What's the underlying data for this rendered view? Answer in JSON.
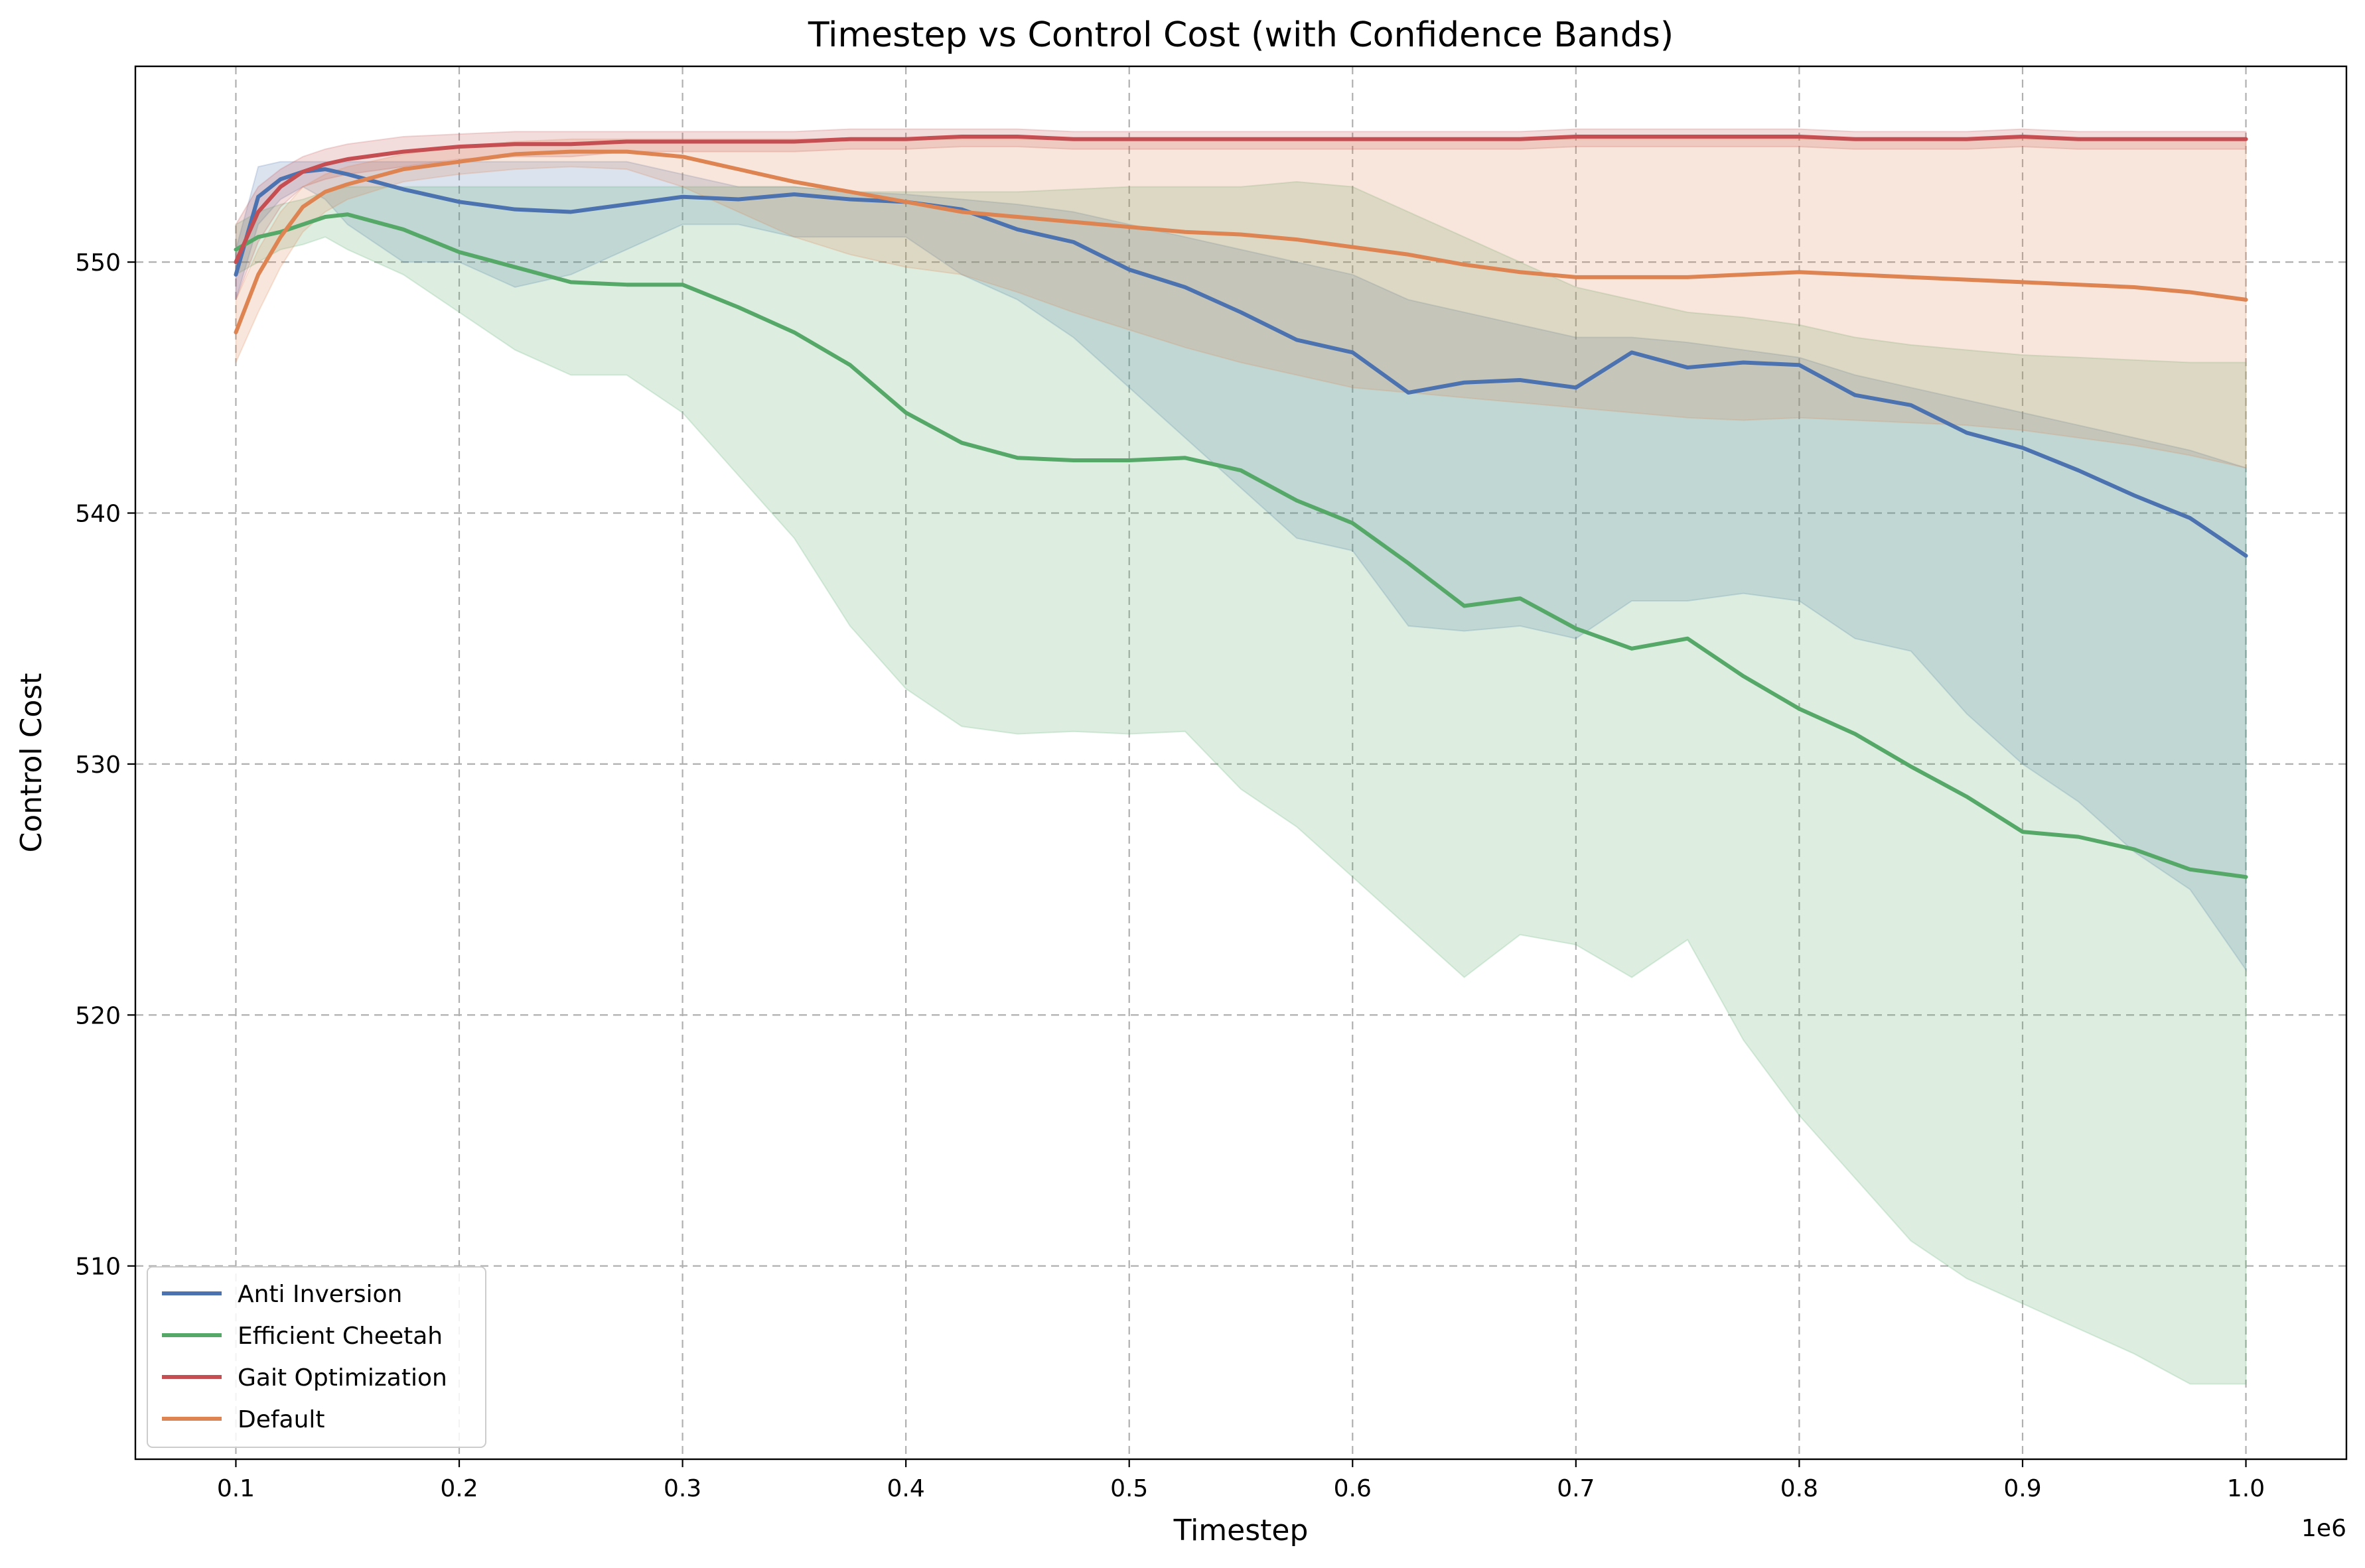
{
  "chart_data": {
    "type": "line",
    "title": "Timestep vs Control Cost (with Confidence Bands)",
    "xlabel": "Timestep",
    "ylabel": "Control Cost",
    "x_offset_label": "1e6",
    "xlim": [
      55000,
      1045000
    ],
    "ylim": [
      502.3,
      557.8
    ],
    "xticks": [
      100000,
      200000,
      300000,
      400000,
      500000,
      600000,
      700000,
      800000,
      900000,
      1000000
    ],
    "xtick_labels": [
      "0.1",
      "0.2",
      "0.3",
      "0.4",
      "0.5",
      "0.6",
      "0.7",
      "0.8",
      "0.9",
      "1.0"
    ],
    "yticks": [
      510,
      520,
      530,
      540,
      550
    ],
    "ytick_labels": [
      "510",
      "520",
      "530",
      "540",
      "550"
    ],
    "grid": true,
    "legend_position": "lower-left",
    "x": [
      100000,
      110000,
      120000,
      130000,
      140000,
      150000,
      175000,
      200000,
      225000,
      250000,
      275000,
      300000,
      325000,
      350000,
      375000,
      400000,
      425000,
      450000,
      475000,
      500000,
      525000,
      550000,
      575000,
      600000,
      625000,
      650000,
      675000,
      700000,
      725000,
      750000,
      775000,
      800000,
      825000,
      850000,
      875000,
      900000,
      925000,
      950000,
      975000,
      1000000
    ],
    "series": [
      {
        "name": "Anti Inversion",
        "color": "#4c72b0",
        "values": [
          549.5,
          552.6,
          553.3,
          553.6,
          553.7,
          553.5,
          552.9,
          552.4,
          552.1,
          552.0,
          552.3,
          552.6,
          552.5,
          552.7,
          552.5,
          552.4,
          552.1,
          551.3,
          550.8,
          549.7,
          549.0,
          548.0,
          546.9,
          546.4,
          544.8,
          545.2,
          545.3,
          545.0,
          546.4,
          545.8,
          546.0,
          545.9,
          544.7,
          544.3,
          543.2,
          542.6,
          541.7,
          540.7,
          539.8,
          538.3
        ],
        "upper": [
          550.5,
          553.8,
          554.0,
          554.0,
          554.0,
          554.0,
          554.0,
          554.0,
          554.0,
          554.0,
          554.0,
          553.5,
          553.0,
          553.0,
          552.8,
          552.7,
          552.5,
          552.3,
          552.0,
          551.5,
          551.0,
          550.5,
          550.0,
          549.5,
          548.5,
          548.0,
          547.5,
          547.0,
          547.0,
          546.8,
          546.5,
          546.2,
          545.5,
          545.0,
          544.5,
          544.0,
          543.5,
          543.0,
          542.5,
          541.8
        ],
        "lower": [
          548.5,
          551.5,
          552.5,
          553.0,
          552.5,
          551.5,
          550.0,
          550.0,
          549.0,
          549.5,
          550.5,
          551.5,
          551.5,
          551.0,
          551.0,
          551.0,
          549.5,
          548.5,
          547.0,
          545.0,
          543.0,
          541.0,
          539.0,
          538.5,
          535.5,
          535.3,
          535.5,
          535.0,
          536.5,
          536.5,
          536.8,
          536.5,
          535.0,
          534.5,
          532.0,
          530.0,
          528.5,
          526.5,
          525.0,
          521.8
        ]
      },
      {
        "name": "Efficient Cheetah",
        "color": "#55a868",
        "values": [
          550.5,
          551.0,
          551.2,
          551.5,
          551.8,
          551.9,
          551.3,
          550.4,
          549.8,
          549.2,
          549.1,
          549.1,
          548.2,
          547.2,
          545.9,
          544.0,
          542.8,
          542.2,
          542.1,
          542.1,
          542.2,
          541.7,
          540.5,
          539.6,
          538.0,
          536.3,
          536.6,
          535.4,
          534.6,
          535.0,
          533.5,
          532.2,
          531.2,
          529.9,
          528.7,
          527.3,
          527.1,
          526.6,
          525.8,
          525.5
        ],
        "upper": [
          551.5,
          552.0,
          552.3,
          552.5,
          552.8,
          553.0,
          553.0,
          553.0,
          553.0,
          553.0,
          553.0,
          553.0,
          553.0,
          553.0,
          552.8,
          552.8,
          552.8,
          552.8,
          552.9,
          553.0,
          553.0,
          553.0,
          553.2,
          553.0,
          552.0,
          551.0,
          550.0,
          549.0,
          548.5,
          548.0,
          547.8,
          547.5,
          547.0,
          546.7,
          546.5,
          546.3,
          546.2,
          546.1,
          546.0,
          546.0
        ],
        "lower": [
          549.5,
          550.0,
          550.5,
          550.7,
          551.0,
          550.5,
          549.5,
          548.0,
          546.5,
          545.5,
          545.5,
          544.0,
          541.5,
          539.0,
          535.5,
          533.0,
          531.5,
          531.2,
          531.3,
          531.2,
          531.3,
          529.0,
          527.5,
          525.5,
          523.5,
          521.5,
          523.2,
          522.8,
          521.5,
          523.0,
          519.0,
          516.0,
          513.5,
          511.0,
          509.5,
          508.5,
          507.5,
          506.5,
          505.3,
          505.3
        ]
      },
      {
        "name": "Gait Optimization",
        "color": "#c44e52",
        "values": [
          550.0,
          552.0,
          553.0,
          553.6,
          553.9,
          554.1,
          554.4,
          554.6,
          554.7,
          554.7,
          554.8,
          554.8,
          554.8,
          554.8,
          554.9,
          554.9,
          555.0,
          555.0,
          554.9,
          554.9,
          554.9,
          554.9,
          554.9,
          554.9,
          554.9,
          554.9,
          554.9,
          555.0,
          555.0,
          555.0,
          555.0,
          555.0,
          554.9,
          554.9,
          554.9,
          555.0,
          554.9,
          554.9,
          554.9,
          554.9
        ],
        "upper": [
          551.5,
          553.0,
          553.7,
          554.2,
          554.5,
          554.7,
          555.0,
          555.1,
          555.2,
          555.2,
          555.2,
          555.2,
          555.2,
          555.2,
          555.3,
          555.3,
          555.3,
          555.3,
          555.2,
          555.2,
          555.2,
          555.2,
          555.2,
          555.2,
          555.2,
          555.2,
          555.2,
          555.3,
          555.3,
          555.3,
          555.3,
          555.3,
          555.2,
          555.2,
          555.2,
          555.3,
          555.2,
          555.2,
          555.2,
          555.2
        ],
        "lower": [
          548.5,
          550.8,
          552.2,
          553.0,
          553.3,
          553.5,
          553.8,
          554.1,
          554.2,
          554.2,
          554.4,
          554.4,
          554.4,
          554.4,
          554.5,
          554.5,
          554.6,
          554.6,
          554.5,
          554.5,
          554.5,
          554.5,
          554.5,
          554.5,
          554.5,
          554.5,
          554.5,
          554.6,
          554.6,
          554.6,
          554.6,
          554.6,
          554.5,
          554.5,
          554.5,
          554.6,
          554.5,
          554.5,
          554.5,
          554.5
        ]
      },
      {
        "name": "Default",
        "color": "#dd8452",
        "values": [
          547.2,
          549.5,
          551.0,
          552.2,
          552.8,
          553.1,
          553.7,
          554.0,
          554.3,
          554.4,
          554.4,
          554.2,
          553.7,
          553.2,
          552.8,
          552.4,
          552.0,
          551.8,
          551.6,
          551.4,
          551.2,
          551.1,
          550.9,
          550.6,
          550.3,
          549.9,
          549.6,
          549.4,
          549.4,
          549.4,
          549.5,
          549.6,
          549.5,
          549.4,
          549.3,
          549.2,
          549.1,
          549.0,
          548.8,
          548.5
        ],
        "upper": [
          548.5,
          550.5,
          552.0,
          553.0,
          553.5,
          553.8,
          554.3,
          554.6,
          554.8,
          554.9,
          554.9,
          554.9,
          554.9,
          554.9,
          554.9,
          554.9,
          554.9,
          554.9,
          554.9,
          554.9,
          554.9,
          554.9,
          554.9,
          554.9,
          554.9,
          554.9,
          554.9,
          554.9,
          554.9,
          554.9,
          554.9,
          554.9,
          554.9,
          554.9,
          554.9,
          554.9,
          554.9,
          554.9,
          554.9,
          554.9
        ],
        "lower": [
          546.0,
          548.0,
          549.8,
          551.2,
          552.0,
          552.5,
          553.2,
          553.5,
          553.7,
          553.8,
          553.7,
          553.0,
          552.0,
          551.0,
          550.3,
          549.8,
          549.5,
          548.8,
          548.0,
          547.3,
          546.6,
          546.0,
          545.5,
          545.0,
          544.8,
          544.6,
          544.4,
          544.2,
          544.0,
          543.8,
          543.7,
          543.8,
          543.7,
          543.6,
          543.5,
          543.3,
          543.0,
          542.7,
          542.3,
          541.8
        ]
      }
    ]
  }
}
